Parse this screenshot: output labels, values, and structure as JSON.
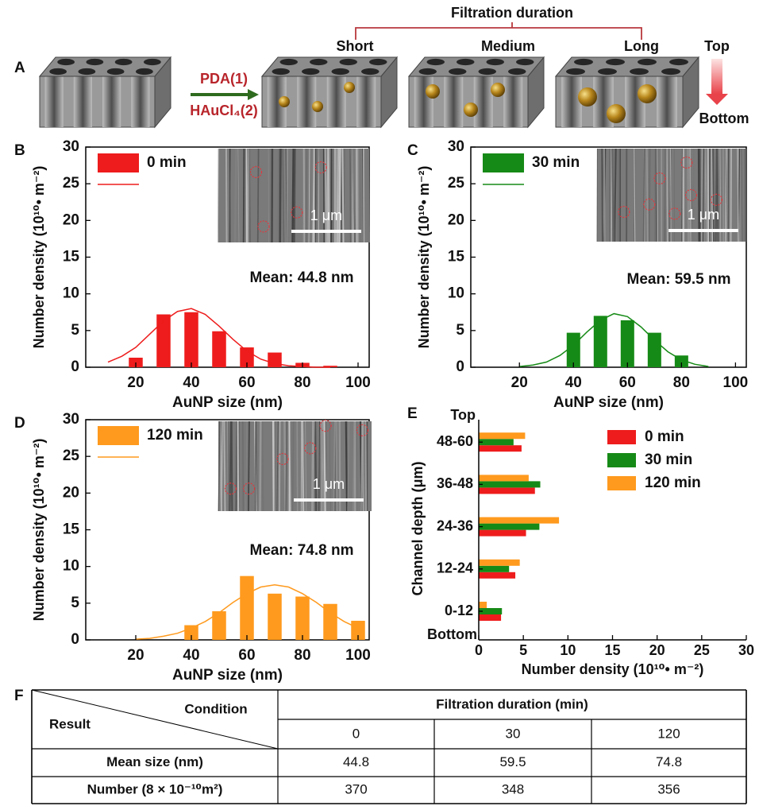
{
  "panel_a": {
    "label": "A",
    "title": "Filtration duration",
    "stages": [
      "Short",
      "Medium",
      "Long"
    ],
    "step1": "PDA(1)",
    "step2": "HAuCl₄(2)",
    "top": "Top",
    "bottom": "Bottom"
  },
  "chart_data": [
    {
      "type": "bar",
      "panel": "B",
      "x": [
        20,
        30,
        40,
        50,
        60,
        70,
        80,
        90
      ],
      "series": [
        {
          "name": "0 min",
          "color": "#ee1c1c",
          "values": [
            1.3,
            7.2,
            7.5,
            4.9,
            2.7,
            2.0,
            0.6,
            0.2
          ]
        }
      ],
      "fit": {
        "x": [
          10,
          15,
          20,
          25,
          30,
          35,
          40,
          45,
          50,
          55,
          60,
          65,
          70,
          75,
          80,
          85,
          90
        ],
        "values": [
          0.7,
          1.5,
          2.7,
          4.5,
          6.3,
          7.6,
          8.0,
          7.2,
          5.6,
          3.8,
          2.2,
          1.1,
          0.5,
          0.2,
          0.1,
          0.0,
          0.0
        ]
      },
      "annotation": "Mean: 44.8 nm",
      "scale_bar": "1 μm",
      "xlabel": "AuNP size (nm)",
      "ylabel": "Number density (10¹⁰• m⁻²)",
      "xlim": [
        2,
        104
      ],
      "ylim": [
        0,
        30
      ],
      "xticks": [
        20,
        40,
        60,
        80,
        100
      ],
      "yticks": [
        0,
        5,
        10,
        15,
        20,
        25,
        30
      ]
    },
    {
      "type": "bar",
      "panel": "C",
      "x": [
        40,
        50,
        60,
        70,
        80
      ],
      "series": [
        {
          "name": "30 min",
          "color": "#168a16",
          "values": [
            4.7,
            7.0,
            6.4,
            4.7,
            1.6
          ]
        }
      ],
      "fit": {
        "x": [
          20,
          25,
          30,
          35,
          40,
          45,
          50,
          55,
          60,
          65,
          70,
          75,
          80,
          85,
          90
        ],
        "values": [
          0.1,
          0.3,
          0.7,
          1.6,
          3.0,
          4.8,
          6.4,
          7.3,
          6.9,
          5.5,
          3.7,
          2.1,
          1.0,
          0.4,
          0.1
        ]
      },
      "annotation": "Mean: 59.5 nm",
      "scale_bar": "1 μm",
      "xlabel": "AuNP size (nm)",
      "ylabel": "Number density (10¹⁰• m⁻²)",
      "xlim": [
        2,
        104
      ],
      "ylim": [
        0,
        30
      ],
      "xticks": [
        20,
        40,
        60,
        80,
        100
      ],
      "yticks": [
        0,
        5,
        10,
        15,
        20,
        25,
        30
      ]
    },
    {
      "type": "bar",
      "panel": "D",
      "x": [
        40,
        50,
        60,
        70,
        80,
        90,
        100
      ],
      "series": [
        {
          "name": "120 min",
          "color": "#ff9a1e",
          "values": [
            2.0,
            3.9,
            8.7,
            6.3,
            5.9,
            4.9,
            2.6
          ]
        }
      ],
      "fit": {
        "x": [
          20,
          25,
          30,
          35,
          40,
          45,
          50,
          55,
          60,
          65,
          70,
          75,
          80,
          85,
          90,
          95,
          100
        ],
        "values": [
          0.1,
          0.2,
          0.5,
          0.9,
          1.6,
          2.5,
          3.7,
          5.1,
          6.3,
          7.2,
          7.5,
          7.2,
          6.3,
          5.1,
          3.7,
          2.5,
          1.6
        ]
      },
      "annotation": "Mean: 74.8 nm",
      "scale_bar": "1 μm",
      "xlabel": "AuNP size (nm)",
      "ylabel": "Number density (10¹⁰• m⁻²)",
      "xlim": [
        2,
        104
      ],
      "ylim": [
        0,
        30
      ],
      "xticks": [
        20,
        40,
        60,
        80,
        100
      ],
      "yticks": [
        0,
        5,
        10,
        15,
        20,
        25,
        30
      ]
    },
    {
      "type": "hbar",
      "panel": "E",
      "categories": [
        "0-12",
        "12-24",
        "24-36",
        "36-48",
        "48-60"
      ],
      "series": [
        {
          "name": "0 min",
          "color": "#ee1c1c",
          "values": [
            2.5,
            4.1,
            5.3,
            6.3,
            4.8
          ]
        },
        {
          "name": "30 min",
          "color": "#168a16",
          "values": [
            2.6,
            3.4,
            6.8,
            6.9,
            3.9
          ]
        },
        {
          "name": "120 min",
          "color": "#ff9a1e",
          "values": [
            0.9,
            4.6,
            9.0,
            5.6,
            5.2
          ]
        }
      ],
      "ylabel_top": "Top",
      "ylabel_bottom": "Bottom",
      "xlabel": "Number density (10¹⁰• m⁻²)",
      "ylabel": "Channel depth (μm)",
      "xlim": [
        0,
        30
      ],
      "xticks": [
        0,
        5,
        10,
        15,
        20,
        25,
        30
      ]
    }
  ],
  "table": {
    "label": "F",
    "corner_result": "Result",
    "corner_condition": "Condition",
    "group_header": "Filtration duration (min)",
    "columns": [
      "0",
      "30",
      "120"
    ],
    "rows": [
      [
        "Mean size (nm)",
        "44.8",
        "59.5",
        "74.8"
      ],
      [
        "Number (8 × 10⁻¹⁰m²)",
        "370",
        "348",
        "356"
      ]
    ]
  }
}
